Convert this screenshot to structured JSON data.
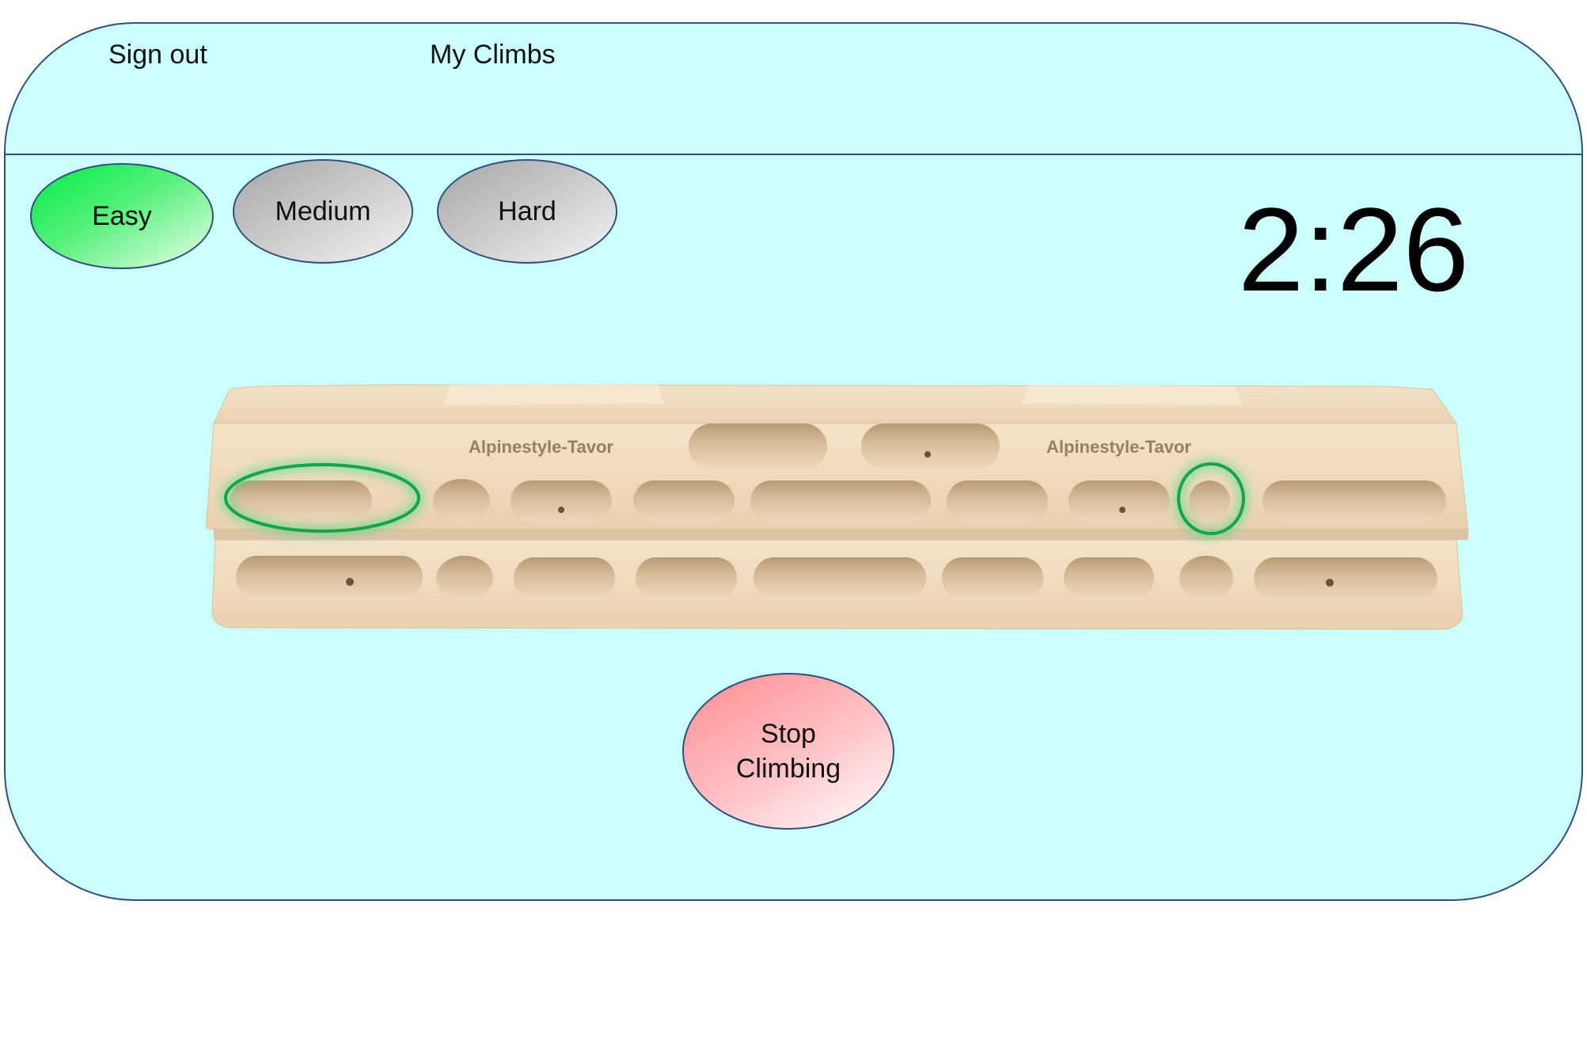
{
  "nav": {
    "sign_out_label": "Sign out",
    "my_climbs_label": "My Climbs"
  },
  "difficulty": {
    "selected": "Easy",
    "options": [
      {
        "label": "Easy",
        "state": "selected",
        "color": "#22ee55"
      },
      {
        "label": "Medium",
        "state": "unselected",
        "color": "#b0b0b0"
      },
      {
        "label": "Hard",
        "state": "unselected",
        "color": "#b0b0b0"
      }
    ]
  },
  "timer": {
    "value": "2:26"
  },
  "hangboard": {
    "brand_left": "Alpinestyle-Tavor",
    "brand_right": "Alpinestyle-Tavor",
    "highlight_color": "#16a34a",
    "highlighted_holds": [
      "top-row-left-slot",
      "top-row-small-pocket-right"
    ]
  },
  "controls": {
    "stop_label": "Stop Climbing",
    "stop_color": "#ff9aa0"
  },
  "colors": {
    "background": "#ccffff",
    "border": "#2f4f7f",
    "wood": "#f0dcbf"
  }
}
